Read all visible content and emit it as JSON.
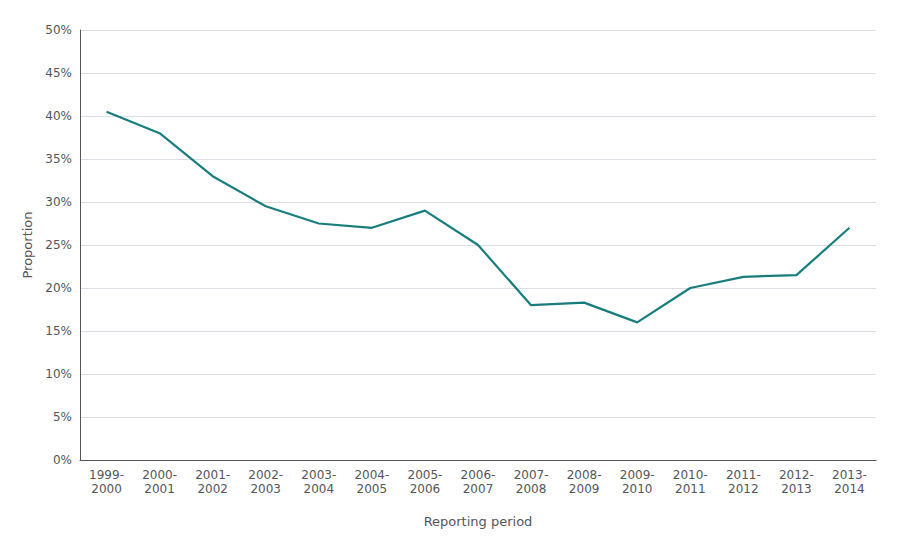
{
  "chart_data": {
    "type": "line",
    "xlabel": "Reporting period",
    "ylabel": "Proportion",
    "categories": [
      "1999-\n2000",
      "2000-\n2001",
      "2001-\n2002",
      "2002-\n2003",
      "2003-\n2004",
      "2004-\n2005",
      "2005-\n2006",
      "2006-\n2007",
      "2007-\n2008",
      "2008-\n2009",
      "2009-\n2010",
      "2010-\n2011",
      "2011-\n2012",
      "2012-\n2013",
      "2013-\n2014"
    ],
    "values": [
      40.5,
      38.0,
      33.0,
      29.5,
      27.5,
      27.0,
      29.0,
      25.0,
      18.0,
      18.3,
      16.0,
      20.0,
      21.3,
      21.5,
      27.0
    ],
    "color": "#197d7d",
    "ylim": [
      0,
      50
    ],
    "yticks": [
      {
        "value": 0,
        "label": "0%"
      },
      {
        "value": 5,
        "label": "5%"
      },
      {
        "value": 10,
        "label": "10%"
      },
      {
        "value": 15,
        "label": "15%"
      },
      {
        "value": 20,
        "label": "20%"
      },
      {
        "value": 25,
        "label": "25%"
      },
      {
        "value": 30,
        "label": "30%"
      },
      {
        "value": 35,
        "label": "35%"
      },
      {
        "value": 40,
        "label": "40%"
      },
      {
        "value": 45,
        "label": "45%"
      },
      {
        "value": 50,
        "label": "50%"
      }
    ],
    "grid": true
  }
}
